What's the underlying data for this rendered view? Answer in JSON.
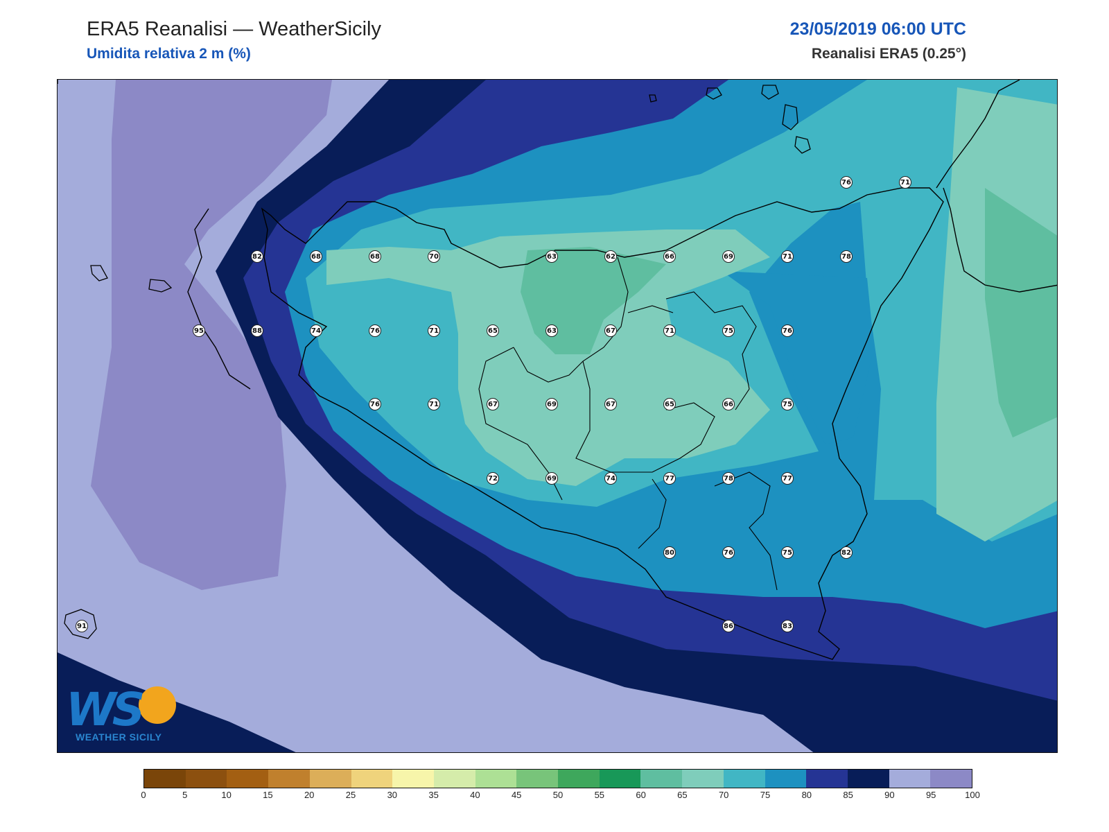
{
  "header": {
    "title": "ERA5 Reanalisi — WeatherSicily",
    "subtitle": "Umidita relativa 2 m (%)",
    "datetime": "23/05/2019 06:00 UTC",
    "source": "Reanalisi ERA5 (0.25°)"
  },
  "map": {
    "station_values": [
      "82",
      "68",
      "68",
      "70",
      "63",
      "62",
      "66",
      "69",
      "71",
      "78",
      "76",
      "71",
      "95",
      "88",
      "74",
      "76",
      "71",
      "65",
      "63",
      "67",
      "71",
      "75",
      "76",
      "76",
      "71",
      "67",
      "69",
      "67",
      "65",
      "66",
      "75",
      "72",
      "69",
      "74",
      "77",
      "78",
      "77",
      "80",
      "76",
      "75",
      "82",
      "91",
      "86",
      "83"
    ]
  },
  "colorbar": {
    "ticks": [
      "0",
      "5",
      "10",
      "15",
      "20",
      "25",
      "30",
      "35",
      "40",
      "45",
      "50",
      "55",
      "60",
      "65",
      "70",
      "75",
      "80",
      "85",
      "90",
      "95",
      "100"
    ],
    "colors": [
      "#7a4509",
      "#8c500f",
      "#a35f12",
      "#c0802d",
      "#dcae59",
      "#efd37c",
      "#f7f5aa",
      "#d5ecaa",
      "#ade095",
      "#78c47a",
      "#3ea75c",
      "#189858",
      "#5fbea0",
      "#7fcdbb",
      "#41b6c4",
      "#1d91c0",
      "#253494",
      "#081d58",
      "#a4acdb",
      "#8c89c6"
    ]
  },
  "logo": {
    "letters": "WS",
    "caption": "WEATHER SICILY"
  }
}
